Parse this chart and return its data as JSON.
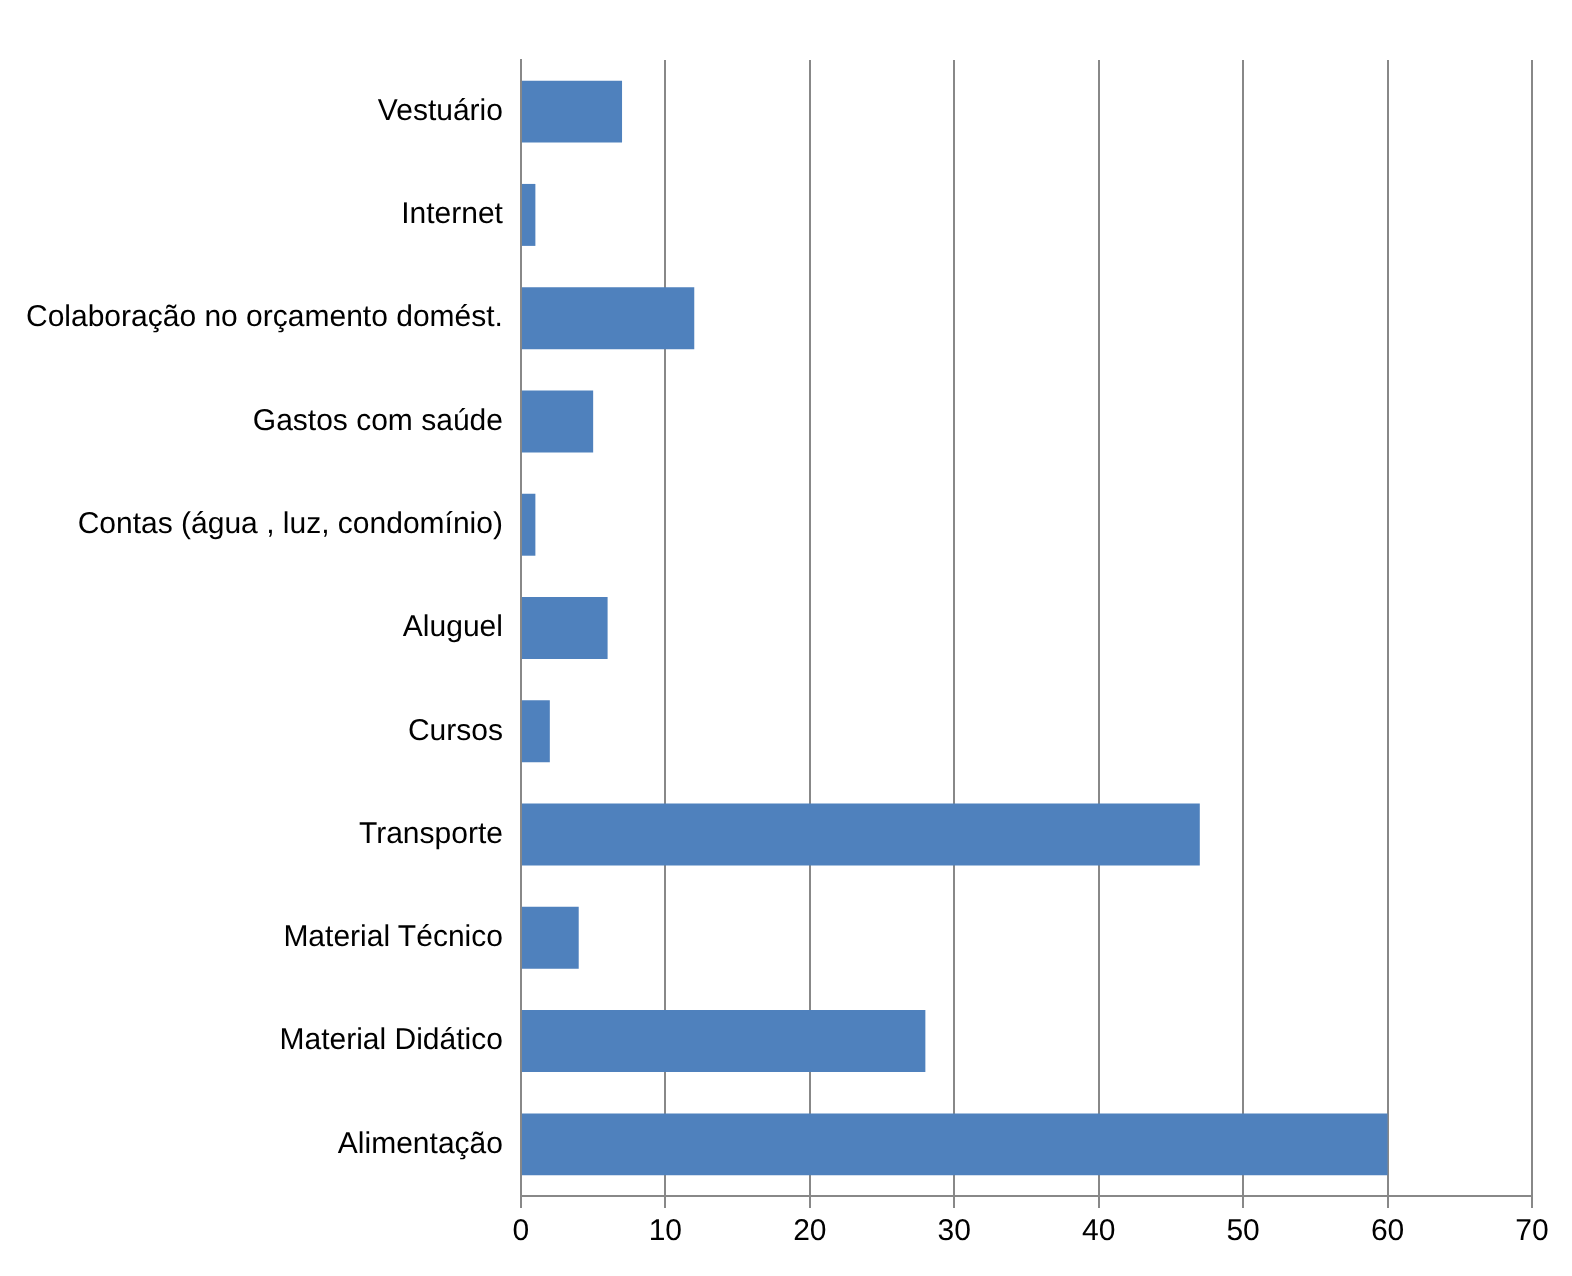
{
  "chart_data": {
    "type": "bar",
    "orientation": "horizontal",
    "categories": [
      "Vestuário",
      "Internet",
      "Colaboração no orçamento domést.",
      "Gastos com saúde",
      "Contas (água , luz, condomínio)",
      "Aluguel",
      "Cursos",
      "Transporte",
      "Material Técnico",
      "Material Didático",
      "Alimentação"
    ],
    "values": [
      7,
      1,
      12,
      5,
      1,
      6,
      2,
      47,
      4,
      28,
      60
    ],
    "color": "#4f81bd",
    "xlim": [
      0,
      70
    ],
    "xticks": [
      0,
      10,
      20,
      30,
      40,
      50,
      60,
      70
    ],
    "grid": "x",
    "legend": false
  }
}
